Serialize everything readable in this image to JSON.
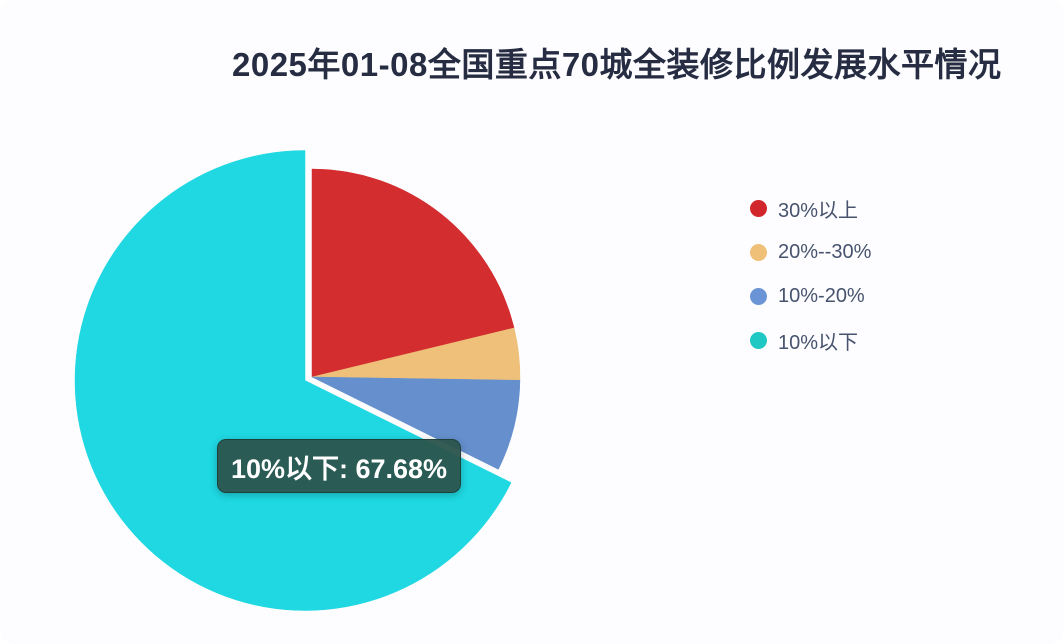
{
  "title": {
    "text": "2025年01-08全国重点70城全装修比例发展水平情况",
    "color": "#262c42"
  },
  "chart_data": {
    "type": "pie",
    "title": "2025年01-08全国重点70城全装修比例发展水平情况",
    "legend_position": "right",
    "unit": "%",
    "slices": [
      {
        "name": "30%以上",
        "value": 21.21,
        "color": "#d32d30",
        "legend_color": "#d0262c",
        "selected": false
      },
      {
        "name": "20%--30%",
        "value": 4.04,
        "color": "#eec079",
        "legend_color": "#efc078",
        "selected": false
      },
      {
        "name": "10%-20%",
        "value": 7.07,
        "color": "#6590cd",
        "legend_color": "#6b94d6",
        "selected": false
      },
      {
        "name": "10%以下",
        "value": 67.68,
        "color": "#1fd8e2",
        "legend_color": "#1fc8c3",
        "selected": true
      }
    ],
    "layout": {
      "start_angle_deg_from_north": 0,
      "direction": "clockwise",
      "normal": {
        "center": [
          312,
          377
        ],
        "radius": 208
      },
      "selected": {
        "center": [
          305,
          380.5
        ],
        "radius": 230
      }
    }
  },
  "tooltip": {
    "slice": "10%以下",
    "value": "67.68%",
    "text": "10%以下: 67.68%",
    "background": "#2b544c"
  }
}
